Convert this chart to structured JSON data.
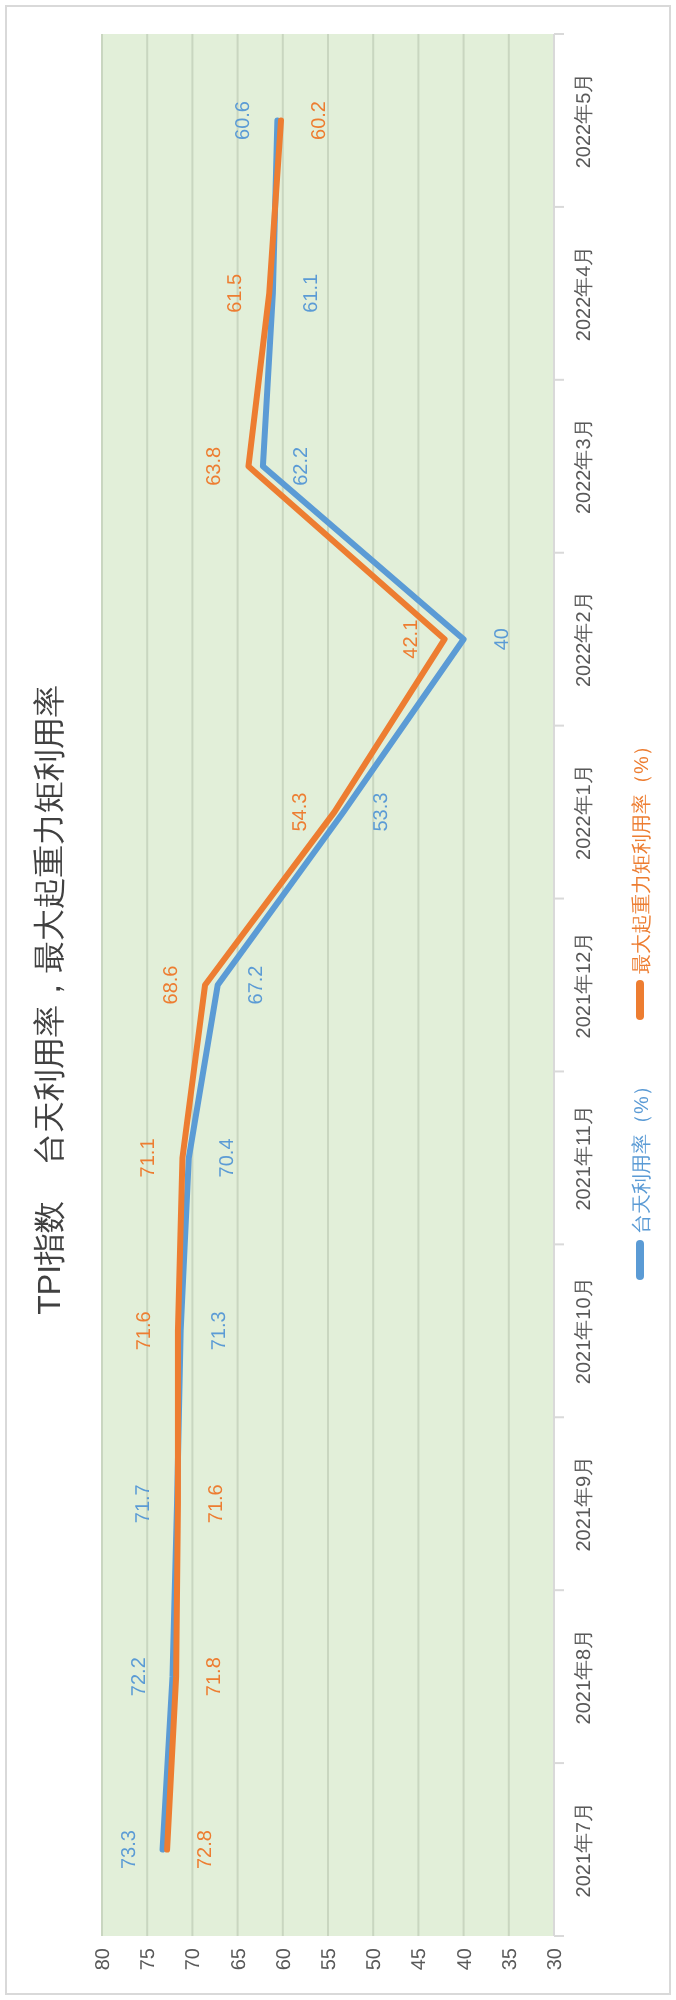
{
  "chart_data": {
    "type": "line",
    "orientation": "horizontal",
    "title": "TPI指数    台天利用率，最大起重力矩利用率",
    "categories": [
      "2022年5月",
      "2022年4月",
      "2022年3月",
      "2022年2月",
      "2022年1月",
      "2021年12月",
      "2021年11月",
      "2021年10月",
      "2021年9月",
      "2021年8月",
      "2021年7月"
    ],
    "series": [
      {
        "name": "台天利用率（%）",
        "color": "#5b9bd5",
        "values": [
          60.6,
          61.1,
          62.2,
          40,
          53.3,
          67.2,
          70.4,
          71.3,
          71.7,
          72.2,
          73.3
        ]
      },
      {
        "name": "最大起重力矩利用率（%）",
        "color": "#ed7d31",
        "values": [
          60.2,
          61.5,
          63.8,
          42.1,
          54.3,
          68.6,
          71.1,
          71.6,
          71.6,
          71.8,
          72.8
        ]
      }
    ],
    "xlim": [
      80,
      30
    ],
    "xticks": [
      80,
      75,
      70,
      65,
      60,
      55,
      50,
      45,
      40,
      35,
      30
    ],
    "grid": "x",
    "legend": "right",
    "data_labels": true,
    "marker": "none",
    "line_style": "solid"
  }
}
